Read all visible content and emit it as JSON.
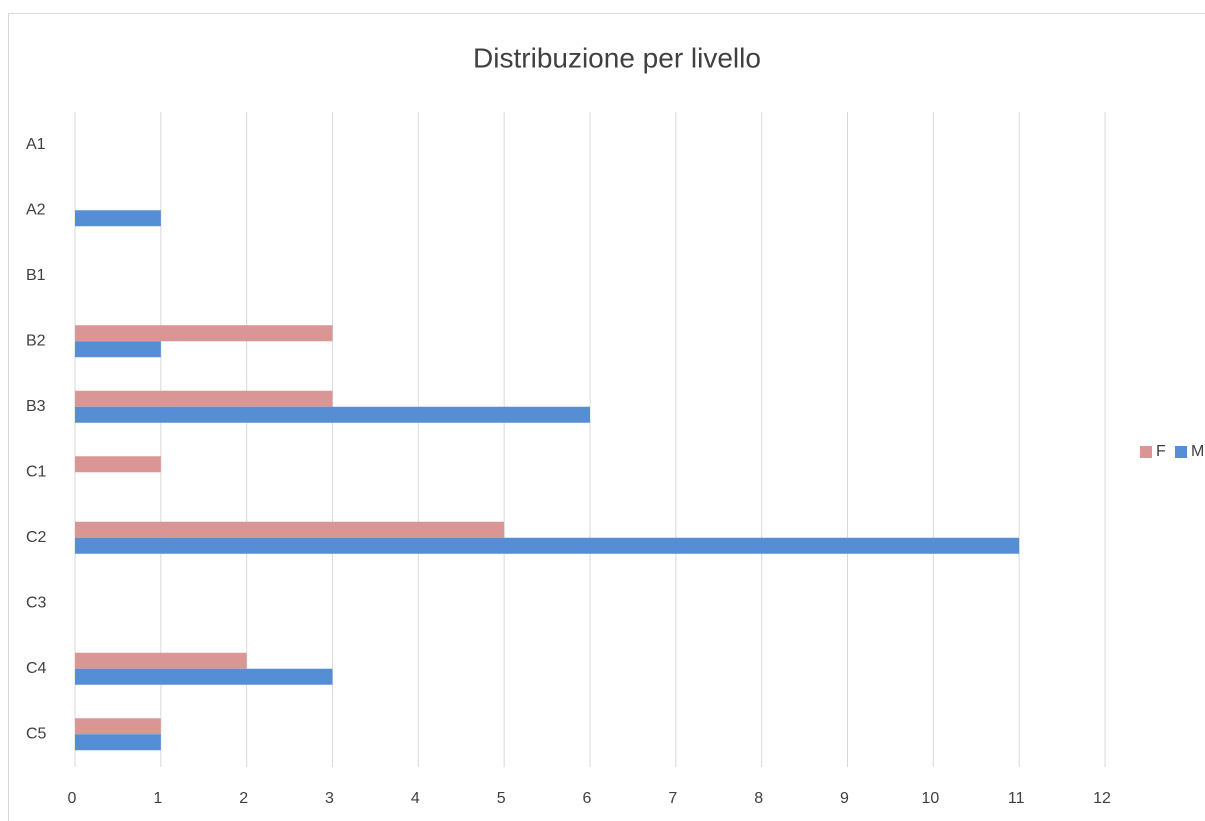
{
  "chart_data": {
    "type": "barh",
    "title": "Distribuzione per livello",
    "categories": [
      "A1",
      "A2",
      "B1",
      "B2",
      "B3",
      "C1",
      "C2",
      "C3",
      "C4",
      "C5"
    ],
    "series": [
      {
        "name": "F",
        "color": "#d99694",
        "values": [
          0,
          0,
          0,
          3,
          3,
          1,
          5,
          0,
          2,
          1
        ]
      },
      {
        "name": "M",
        "color": "#558ed5",
        "values": [
          0,
          1,
          0,
          1,
          6,
          0,
          11,
          0,
          3,
          1
        ]
      }
    ],
    "xlim": [
      0,
      12
    ],
    "xticks": [
      0,
      1,
      2,
      3,
      4,
      5,
      6,
      7,
      8,
      9,
      10,
      11,
      12
    ],
    "grid": true,
    "legend": "right"
  }
}
